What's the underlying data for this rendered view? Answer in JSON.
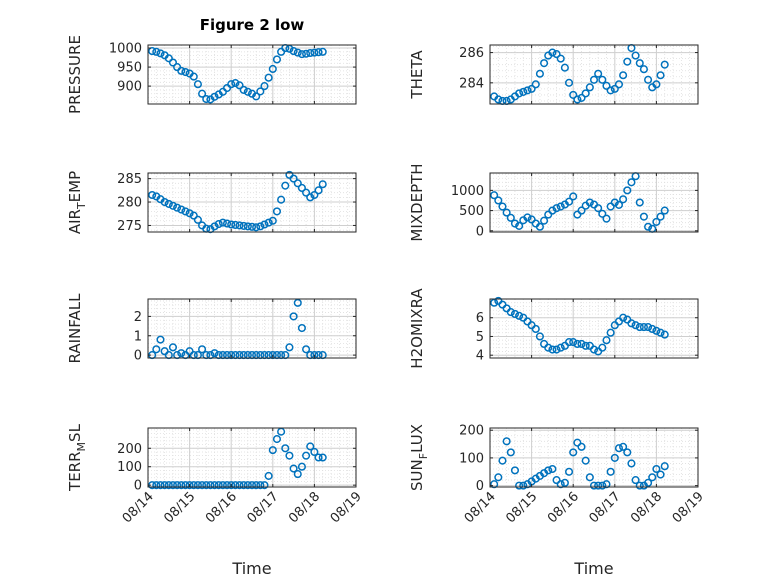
{
  "chart_data": {
    "title": "Figure 2 low",
    "type": "scatter",
    "marker": "open-circle",
    "color": "#0072BD",
    "grid": "major-and-minor",
    "xlabel": "Time",
    "xlim": [
      0,
      5
    ],
    "xticks": [
      0,
      1,
      2,
      3,
      4,
      5
    ],
    "xticklabels": [
      "08/14",
      "08/15",
      "08/16",
      "08/17",
      "08/18",
      "08/19"
    ],
    "panels": [
      {
        "id": "pressure",
        "ylabel": "PRESSURE",
        "ylabel_sub": "",
        "ylabel_suffix": "",
        "ylim": [
          853,
          1008
        ],
        "yticks": [
          900,
          950,
          1000
        ],
        "x": [
          0.1,
          0.2,
          0.3,
          0.4,
          0.5,
          0.6,
          0.7,
          0.8,
          0.9,
          1.0,
          1.1,
          1.2,
          1.3,
          1.4,
          1.5,
          1.6,
          1.7,
          1.8,
          1.9,
          2.0,
          2.1,
          2.2,
          2.3,
          2.4,
          2.5,
          2.6,
          2.7,
          2.8,
          2.9,
          3.0,
          3.1,
          3.2,
          3.3,
          3.4,
          3.5,
          3.6,
          3.7,
          3.8,
          3.9,
          4.0,
          4.1,
          4.2
        ],
        "y": [
          992,
          990,
          986,
          981,
          973,
          962,
          950,
          940,
          937,
          933,
          925,
          905,
          880,
          866,
          865,
          872,
          878,
          885,
          895,
          905,
          908,
          902,
          890,
          885,
          880,
          873,
          886,
          900,
          922,
          945,
          970,
          990,
          1000,
          998,
          992,
          988,
          984,
          985,
          987,
          988,
          989,
          990
        ]
      },
      {
        "id": "theta",
        "ylabel": "THETA",
        "ylabel_sub": "",
        "ylabel_suffix": "",
        "ylim": [
          282.6,
          286.5
        ],
        "yticks": [
          284,
          286
        ],
        "x": [
          0.1,
          0.2,
          0.3,
          0.4,
          0.5,
          0.6,
          0.7,
          0.8,
          0.9,
          1.0,
          1.1,
          1.2,
          1.3,
          1.4,
          1.5,
          1.6,
          1.7,
          1.8,
          1.9,
          2.0,
          2.1,
          2.2,
          2.3,
          2.4,
          2.5,
          2.6,
          2.7,
          2.8,
          2.9,
          3.0,
          3.1,
          3.2,
          3.3,
          3.4,
          3.5,
          3.6,
          3.7,
          3.8,
          3.9,
          4.0,
          4.1,
          4.2
        ],
        "y": [
          283.1,
          282.9,
          282.8,
          282.8,
          282.9,
          283.1,
          283.3,
          283.4,
          283.5,
          283.6,
          283.9,
          284.6,
          285.3,
          285.8,
          286.0,
          285.9,
          285.6,
          285.0,
          284.0,
          283.2,
          282.9,
          283.0,
          283.3,
          283.7,
          284.2,
          284.6,
          284.2,
          283.8,
          283.5,
          283.6,
          283.9,
          284.5,
          285.4,
          286.3,
          285.8,
          285.3,
          284.9,
          284.2,
          283.7,
          283.9,
          284.5,
          285.2
        ]
      },
      {
        "id": "air_temp",
        "ylabel": "AIR",
        "ylabel_sub": "T",
        "ylabel_suffix": "EMP",
        "ylim": [
          273.6,
          286.2
        ],
        "yticks": [
          275,
          280,
          285
        ],
        "x": [
          0.1,
          0.2,
          0.3,
          0.4,
          0.5,
          0.6,
          0.7,
          0.8,
          0.9,
          1.0,
          1.1,
          1.2,
          1.3,
          1.4,
          1.5,
          1.6,
          1.7,
          1.8,
          1.9,
          2.0,
          2.1,
          2.2,
          2.3,
          2.4,
          2.5,
          2.6,
          2.7,
          2.8,
          2.9,
          3.0,
          3.1,
          3.2,
          3.3,
          3.4,
          3.5,
          3.6,
          3.7,
          3.8,
          3.9,
          4.0,
          4.1,
          4.2
        ],
        "y": [
          281.5,
          281.2,
          280.6,
          280.0,
          279.6,
          279.2,
          278.8,
          278.4,
          278.0,
          277.6,
          277.1,
          276.2,
          275.0,
          274.3,
          274.2,
          274.8,
          275.3,
          275.6,
          275.4,
          275.2,
          275.1,
          275.0,
          274.9,
          274.8,
          274.7,
          274.6,
          274.8,
          275.2,
          275.6,
          276.0,
          278.0,
          280.5,
          283.5,
          285.8,
          285.0,
          284.0,
          283.0,
          282.0,
          281.0,
          281.5,
          282.5,
          283.8
        ]
      },
      {
        "id": "mixdepth",
        "ylabel": "MIXDEPTH",
        "ylabel_sub": "",
        "ylabel_suffix": "",
        "ylim": [
          -30,
          1430
        ],
        "yticks": [
          0,
          500,
          1000
        ],
        "x": [
          0.1,
          0.2,
          0.3,
          0.4,
          0.5,
          0.6,
          0.7,
          0.8,
          0.9,
          1.0,
          1.1,
          1.2,
          1.3,
          1.4,
          1.5,
          1.6,
          1.7,
          1.8,
          1.9,
          2.0,
          2.1,
          2.2,
          2.3,
          2.4,
          2.5,
          2.6,
          2.7,
          2.8,
          2.9,
          3.0,
          3.1,
          3.2,
          3.3,
          3.4,
          3.5,
          3.6,
          3.7,
          3.8,
          3.9,
          4.0,
          4.1,
          4.2
        ],
        "y": [
          880,
          750,
          600,
          450,
          320,
          180,
          120,
          260,
          330,
          280,
          180,
          100,
          250,
          400,
          500,
          560,
          600,
          650,
          720,
          850,
          400,
          500,
          620,
          700,
          650,
          560,
          420,
          300,
          600,
          700,
          640,
          780,
          1000,
          1200,
          1350,
          700,
          350,
          100,
          50,
          220,
          350,
          500
        ]
      },
      {
        "id": "rainfall",
        "ylabel": "RAINFALL",
        "ylabel_sub": "",
        "ylabel_suffix": "",
        "ylim": [
          -0.15,
          2.9
        ],
        "yticks": [
          0,
          1,
          2
        ],
        "x": [
          0.1,
          0.2,
          0.3,
          0.4,
          0.5,
          0.6,
          0.7,
          0.8,
          0.9,
          1.0,
          1.1,
          1.2,
          1.3,
          1.4,
          1.5,
          1.6,
          1.7,
          1.8,
          1.9,
          2.0,
          2.1,
          2.2,
          2.3,
          2.4,
          2.5,
          2.6,
          2.7,
          2.8,
          2.9,
          3.0,
          3.1,
          3.2,
          3.3,
          3.4,
          3.5,
          3.6,
          3.7,
          3.8,
          3.9,
          4.0,
          4.1,
          4.2
        ],
        "y": [
          0.0,
          0.3,
          0.8,
          0.2,
          0.0,
          0.4,
          0.0,
          0.1,
          0.0,
          0.2,
          0.0,
          0.0,
          0.3,
          0.0,
          0.0,
          0.1,
          0.0,
          0.0,
          0.0,
          0.0,
          0.0,
          0.0,
          0.0,
          0.0,
          0.0,
          0.0,
          0.0,
          0.0,
          0.0,
          0.0,
          0.0,
          0.0,
          0.0,
          0.4,
          2.0,
          2.7,
          1.4,
          0.3,
          0.0,
          0.0,
          0.0,
          0.0
        ]
      },
      {
        "id": "h2omixra",
        "ylabel": "H2OMIXRA",
        "ylabel_sub": "",
        "ylabel_suffix": "",
        "ylim": [
          3.85,
          7.0
        ],
        "yticks": [
          4,
          5,
          6
        ],
        "x": [
          0.1,
          0.2,
          0.3,
          0.4,
          0.5,
          0.6,
          0.7,
          0.8,
          0.9,
          1.0,
          1.1,
          1.2,
          1.3,
          1.4,
          1.5,
          1.6,
          1.7,
          1.8,
          1.9,
          2.0,
          2.1,
          2.2,
          2.3,
          2.4,
          2.5,
          2.6,
          2.7,
          2.8,
          2.9,
          3.0,
          3.1,
          3.2,
          3.3,
          3.4,
          3.5,
          3.6,
          3.7,
          3.8,
          3.9,
          4.0,
          4.1,
          4.2
        ],
        "y": [
          6.8,
          6.9,
          6.7,
          6.5,
          6.3,
          6.2,
          6.1,
          6.0,
          5.8,
          5.6,
          5.4,
          5.0,
          4.6,
          4.4,
          4.3,
          4.3,
          4.4,
          4.5,
          4.7,
          4.7,
          4.6,
          4.6,
          4.5,
          4.5,
          4.3,
          4.2,
          4.4,
          4.8,
          5.2,
          5.6,
          5.8,
          6.0,
          5.9,
          5.7,
          5.6,
          5.5,
          5.5,
          5.5,
          5.4,
          5.3,
          5.2,
          5.1
        ]
      },
      {
        "id": "terr_msl",
        "ylabel": "TERR",
        "ylabel_sub": "M",
        "ylabel_suffix": "SL",
        "ylim": [
          -10,
          310
        ],
        "yticks": [
          0,
          100,
          200
        ],
        "x": [
          0.1,
          0.2,
          0.3,
          0.4,
          0.5,
          0.6,
          0.7,
          0.8,
          0.9,
          1.0,
          1.1,
          1.2,
          1.3,
          1.4,
          1.5,
          1.6,
          1.7,
          1.8,
          1.9,
          2.0,
          2.1,
          2.2,
          2.3,
          2.4,
          2.5,
          2.6,
          2.7,
          2.8,
          2.9,
          3.0,
          3.1,
          3.2,
          3.3,
          3.4,
          3.5,
          3.6,
          3.7,
          3.8,
          3.9,
          4.0,
          4.1,
          4.2
        ],
        "y": [
          0,
          0,
          0,
          0,
          0,
          0,
          0,
          0,
          0,
          0,
          0,
          0,
          0,
          0,
          0,
          0,
          0,
          0,
          0,
          0,
          0,
          0,
          0,
          0,
          0,
          0,
          0,
          0,
          50,
          190,
          250,
          290,
          200,
          160,
          90,
          60,
          100,
          160,
          210,
          180,
          150,
          150
        ]
      },
      {
        "id": "sun_flux",
        "ylabel": "SUN",
        "ylabel_sub": "F",
        "ylabel_suffix": "LUX",
        "ylim": [
          -5,
          208
        ],
        "yticks": [
          0,
          100,
          200
        ],
        "x": [
          0.1,
          0.2,
          0.3,
          0.4,
          0.5,
          0.6,
          0.7,
          0.8,
          0.9,
          1.0,
          1.1,
          1.2,
          1.3,
          1.4,
          1.5,
          1.6,
          1.7,
          1.8,
          1.9,
          2.0,
          2.1,
          2.2,
          2.3,
          2.4,
          2.5,
          2.6,
          2.7,
          2.8,
          2.9,
          3.0,
          3.1,
          3.2,
          3.3,
          3.4,
          3.5,
          3.6,
          3.7,
          3.8,
          3.9,
          4.0,
          4.1,
          4.2
        ],
        "y": [
          5,
          30,
          90,
          160,
          120,
          55,
          0,
          0,
          5,
          15,
          25,
          35,
          45,
          55,
          60,
          20,
          5,
          10,
          50,
          120,
          155,
          140,
          90,
          30,
          0,
          0,
          0,
          5,
          50,
          100,
          135,
          140,
          120,
          80,
          20,
          0,
          0,
          10,
          30,
          60,
          40,
          70
        ]
      }
    ]
  }
}
